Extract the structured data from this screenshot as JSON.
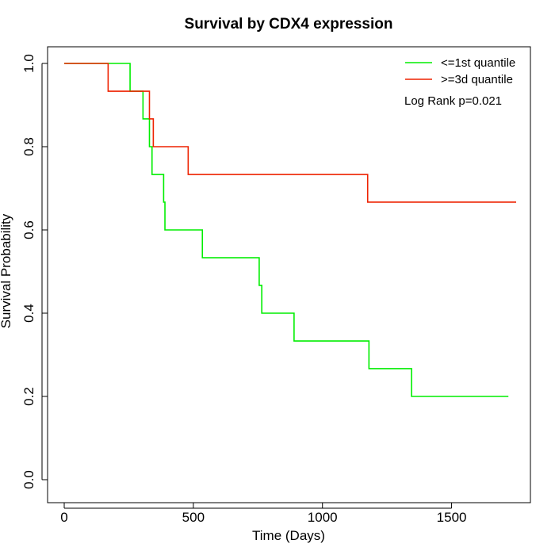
{
  "chart_data": {
    "type": "line",
    "title": "Survival by CDX4 expression",
    "xlabel": "Time (Days)",
    "ylabel": "Survival Probability",
    "xlim": [
      0,
      1800
    ],
    "ylim": [
      0.0,
      1.0
    ],
    "xticks": [
      0,
      500,
      1000,
      1500
    ],
    "xtick_labels": [
      "0",
      "500",
      "1000",
      "1500"
    ],
    "yticks": [
      0.0,
      0.2,
      0.4,
      0.6,
      0.8,
      1.0
    ],
    "ytick_labels": [
      "0.0",
      "0.2",
      "0.4",
      "0.6",
      "0.8",
      "1.0"
    ],
    "legend_position": "top-right",
    "annotation": "Log Rank p=0.021",
    "series": [
      {
        "name": "<=1st quantile",
        "color": "#00ee00",
        "step": true,
        "x": [
          0,
          255,
          305,
          330,
          340,
          385,
          390,
          535,
          755,
          765,
          890,
          1180,
          1345,
          1720
        ],
        "y": [
          1.0,
          0.9333,
          0.8667,
          0.8,
          0.7333,
          0.6667,
          0.6,
          0.5333,
          0.4667,
          0.4,
          0.3333,
          0.2667,
          0.2,
          0.2
        ]
      },
      {
        "name": ">=3d quantile",
        "color": "#ee2200",
        "step": true,
        "x": [
          0,
          170,
          330,
          345,
          480,
          1175,
          1750
        ],
        "y": [
          1.0,
          0.9333,
          0.8667,
          0.8,
          0.7333,
          0.6667,
          0.6667
        ]
      }
    ]
  }
}
